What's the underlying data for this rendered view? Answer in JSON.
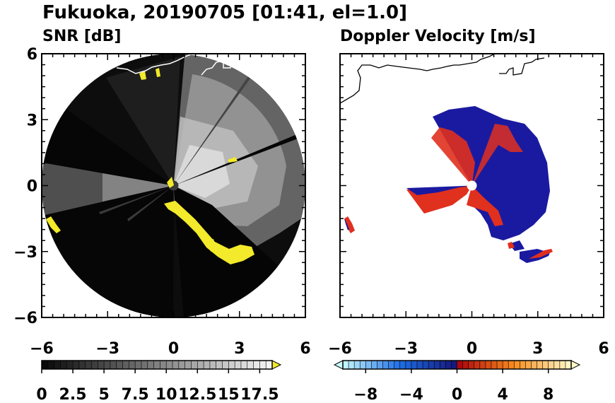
{
  "title": "Fukuoka, 20190705 [01:41, el=1.0]",
  "colors": {
    "echo_yellow": "#f2ea2a",
    "negative_vel": "#1a1aa0",
    "positive_vel": "#e0301e",
    "coastline": "#000000"
  },
  "chart_data": [
    {
      "type": "heatmap",
      "title": "SNR [dB]",
      "domain_shape": "polar-disk",
      "xlim": [
        -6,
        6
      ],
      "ylim": [
        -6,
        6
      ],
      "x_ticks": [
        -6,
        -3,
        0,
        3,
        6
      ],
      "y_ticks": [
        -6,
        -3,
        0,
        3,
        6
      ],
      "x_tick_labels": [
        "−6",
        "−3",
        "0",
        "3",
        "6"
      ],
      "y_tick_labels": [
        "6",
        "3",
        "0",
        "−3",
        "−6"
      ],
      "radar_range": 6,
      "colorbar": {
        "min": 0,
        "max": 18.5,
        "step": 0.5,
        "extend": "max",
        "tick_values": [
          0,
          2.5,
          5,
          7.5,
          10,
          12.5,
          15,
          17.5
        ],
        "tick_labels": [
          "0",
          "2.5",
          "5",
          "7.5",
          "10",
          "12.5",
          "15",
          "17.5"
        ],
        "colormap": "gray-black-to-white",
        "over_color": "#f2ea2a"
      }
    },
    {
      "type": "heatmap",
      "title": "Doppler Velocity [m/s]",
      "domain_shape": "polar-disk",
      "xlim": [
        -6,
        6
      ],
      "ylim": [
        -6,
        6
      ],
      "x_ticks": [
        -6,
        -3,
        0,
        3,
        6
      ],
      "x_tick_labels": [
        "−6",
        "−3",
        "0",
        "3",
        "6"
      ],
      "colorbar": {
        "min": -10,
        "max": 10,
        "step": 0.5,
        "extend": "both",
        "tick_values": [
          -8,
          -4,
          0,
          4,
          8
        ],
        "tick_labels": [
          "−8",
          "−4",
          "0",
          "4",
          "8"
        ],
        "colormap": "cyan-blue-navy | red-orange-yellow"
      }
    }
  ]
}
